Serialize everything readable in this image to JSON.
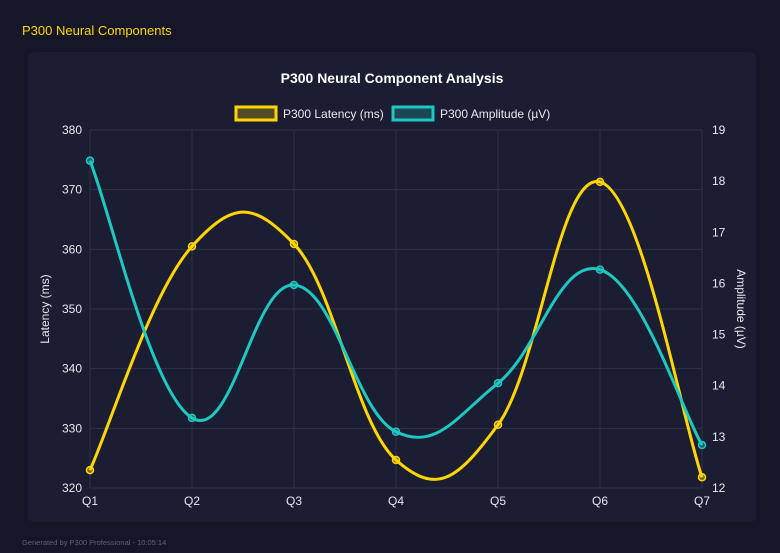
{
  "page": {
    "title": "P300 Neural Components",
    "footer": "Generated by P300 Professional - 10:05:14"
  },
  "chart_data": {
    "type": "line",
    "title": "P300 Neural Component Analysis",
    "categories": [
      "Q1",
      "Q2",
      "Q3",
      "Q4",
      "Q5",
      "Q6",
      "Q7"
    ],
    "series": [
      {
        "name": "P300 Latency (ms)",
        "axis": "left",
        "color": "#ffd600",
        "values": [
          323.0,
          360.5,
          360.9,
          324.7,
          330.6,
          371.3,
          321.8
        ]
      },
      {
        "name": "P300 Amplitude (µV)",
        "axis": "right",
        "color": "#1ec8c0",
        "values": [
          18.4,
          13.37,
          15.97,
          13.1,
          14.05,
          16.27,
          12.84
        ]
      }
    ],
    "ylabel_left": "Latency (ms)",
    "ylabel_right": "Amplitude (µV)",
    "ylim_left": [
      320,
      380
    ],
    "yticks_left": [
      "320",
      "330",
      "340",
      "350",
      "360",
      "370",
      "380"
    ],
    "ylim_right": [
      12,
      19
    ],
    "yticks_right": [
      "12",
      "13",
      "14",
      "15",
      "16",
      "17",
      "18",
      "19"
    ],
    "grid": true,
    "legend": "top"
  }
}
